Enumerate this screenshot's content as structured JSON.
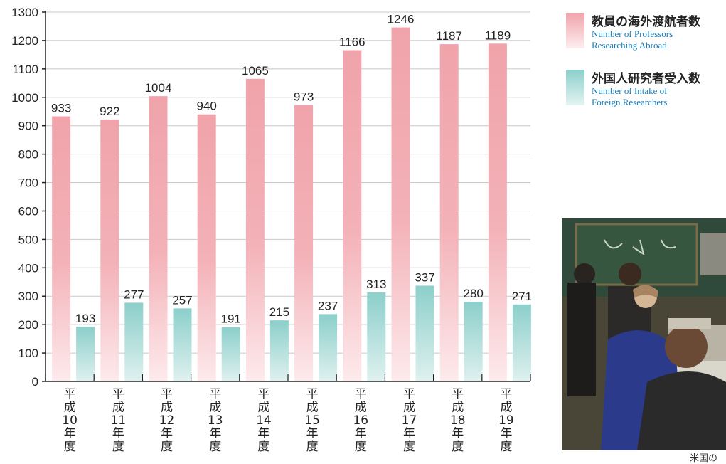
{
  "chart_data": {
    "type": "bar",
    "categories": [
      "平成10年度",
      "平成11年度",
      "平成12年度",
      "平成13年度",
      "平成14年度",
      "平成15年度",
      "平成16年度",
      "平成17年度",
      "平成18年度",
      "平成19年度"
    ],
    "category_label_chars": [
      [
        "平",
        "成",
        "10",
        "年",
        "度"
      ],
      [
        "平",
        "成",
        "11",
        "年",
        "度"
      ],
      [
        "平",
        "成",
        "12",
        "年",
        "度"
      ],
      [
        "平",
        "成",
        "13",
        "年",
        "度"
      ],
      [
        "平",
        "成",
        "14",
        "年",
        "度"
      ],
      [
        "平",
        "成",
        "15",
        "年",
        "度"
      ],
      [
        "平",
        "成",
        "16",
        "年",
        "度"
      ],
      [
        "平",
        "成",
        "17",
        "年",
        "度"
      ],
      [
        "平",
        "成",
        "18",
        "年",
        "度"
      ],
      [
        "平",
        "成",
        "19",
        "年",
        "度"
      ]
    ],
    "series": [
      {
        "name": "教員の海外渡航者数 Number of Professors Researching Abroad",
        "values": [
          933,
          922,
          1004,
          940,
          1065,
          973,
          1166,
          1246,
          1187,
          1189
        ],
        "color": "#f0a3aa"
      },
      {
        "name": "外国人研究者受入数 Number of Intake of Foreign Researchers",
        "values": [
          193,
          277,
          257,
          191,
          215,
          237,
          313,
          337,
          280,
          271
        ],
        "color": "#8ccfcb"
      }
    ],
    "ylim": [
      0,
      1300
    ],
    "yticks": [
      0,
      100,
      200,
      300,
      400,
      500,
      600,
      700,
      800,
      900,
      1000,
      1100,
      1200,
      1300
    ],
    "grid": true,
    "legend_position": "top-right"
  },
  "legend": {
    "a": {
      "jp": "教員の海外渡航者数",
      "en1": "Number of Professors",
      "en2": "Researching Abroad"
    },
    "b": {
      "jp": "外国人研究者受入数",
      "en1": "Number of Intake of",
      "en2": "Foreign Researchers"
    }
  },
  "photo": {
    "caption": "米国の"
  },
  "colors": {
    "accent_text": "#1a7fb8",
    "grid": "#c8c8c8",
    "axis": "#222222"
  }
}
